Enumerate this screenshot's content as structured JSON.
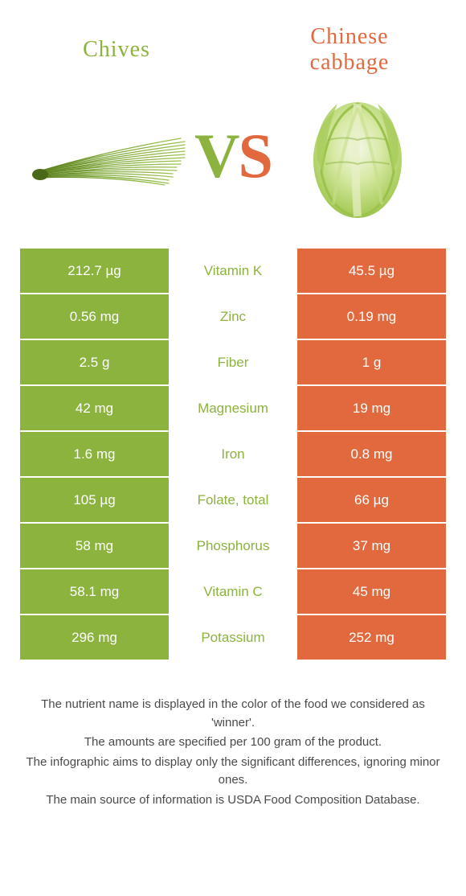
{
  "colors": {
    "left": "#8bb33d",
    "right": "#e1693d",
    "left_dark": "#6b8f2a",
    "right_light": "#e88a5f",
    "cabbage_light": "#d6e9a3",
    "cabbage_mid": "#a8cc5a",
    "cabbage_dark": "#7fa838",
    "cabbage_white": "#f4f7e8"
  },
  "header": {
    "left_label": "Chives",
    "right_label": "Chinese cabbage",
    "vs_v": "V",
    "vs_s": "S"
  },
  "rows": [
    {
      "left": "212.7 µg",
      "center": "Vitamin K",
      "right": "45.5 µg",
      "winner": "left"
    },
    {
      "left": "0.56 mg",
      "center": "Zinc",
      "right": "0.19 mg",
      "winner": "left"
    },
    {
      "left": "2.5 g",
      "center": "Fiber",
      "right": "1 g",
      "winner": "left"
    },
    {
      "left": "42 mg",
      "center": "Magnesium",
      "right": "19 mg",
      "winner": "left"
    },
    {
      "left": "1.6 mg",
      "center": "Iron",
      "right": "0.8 mg",
      "winner": "left"
    },
    {
      "left": "105 µg",
      "center": "Folate, total",
      "right": "66 µg",
      "winner": "left"
    },
    {
      "left": "58 mg",
      "center": "Phosphorus",
      "right": "37 mg",
      "winner": "left"
    },
    {
      "left": "58.1 mg",
      "center": "Vitamin C",
      "right": "45 mg",
      "winner": "left"
    },
    {
      "left": "296 mg",
      "center": "Potassium",
      "right": "252 mg",
      "winner": "left"
    }
  ],
  "footer": {
    "line1": "The nutrient name is displayed in the color of the food we considered as 'winner'.",
    "line2": "The amounts are specified per 100 gram of the product.",
    "line3": "The infographic aims to display only the significant differences, ignoring minor ones.",
    "line4": "The main source of information is USDA Food Composition Database."
  }
}
